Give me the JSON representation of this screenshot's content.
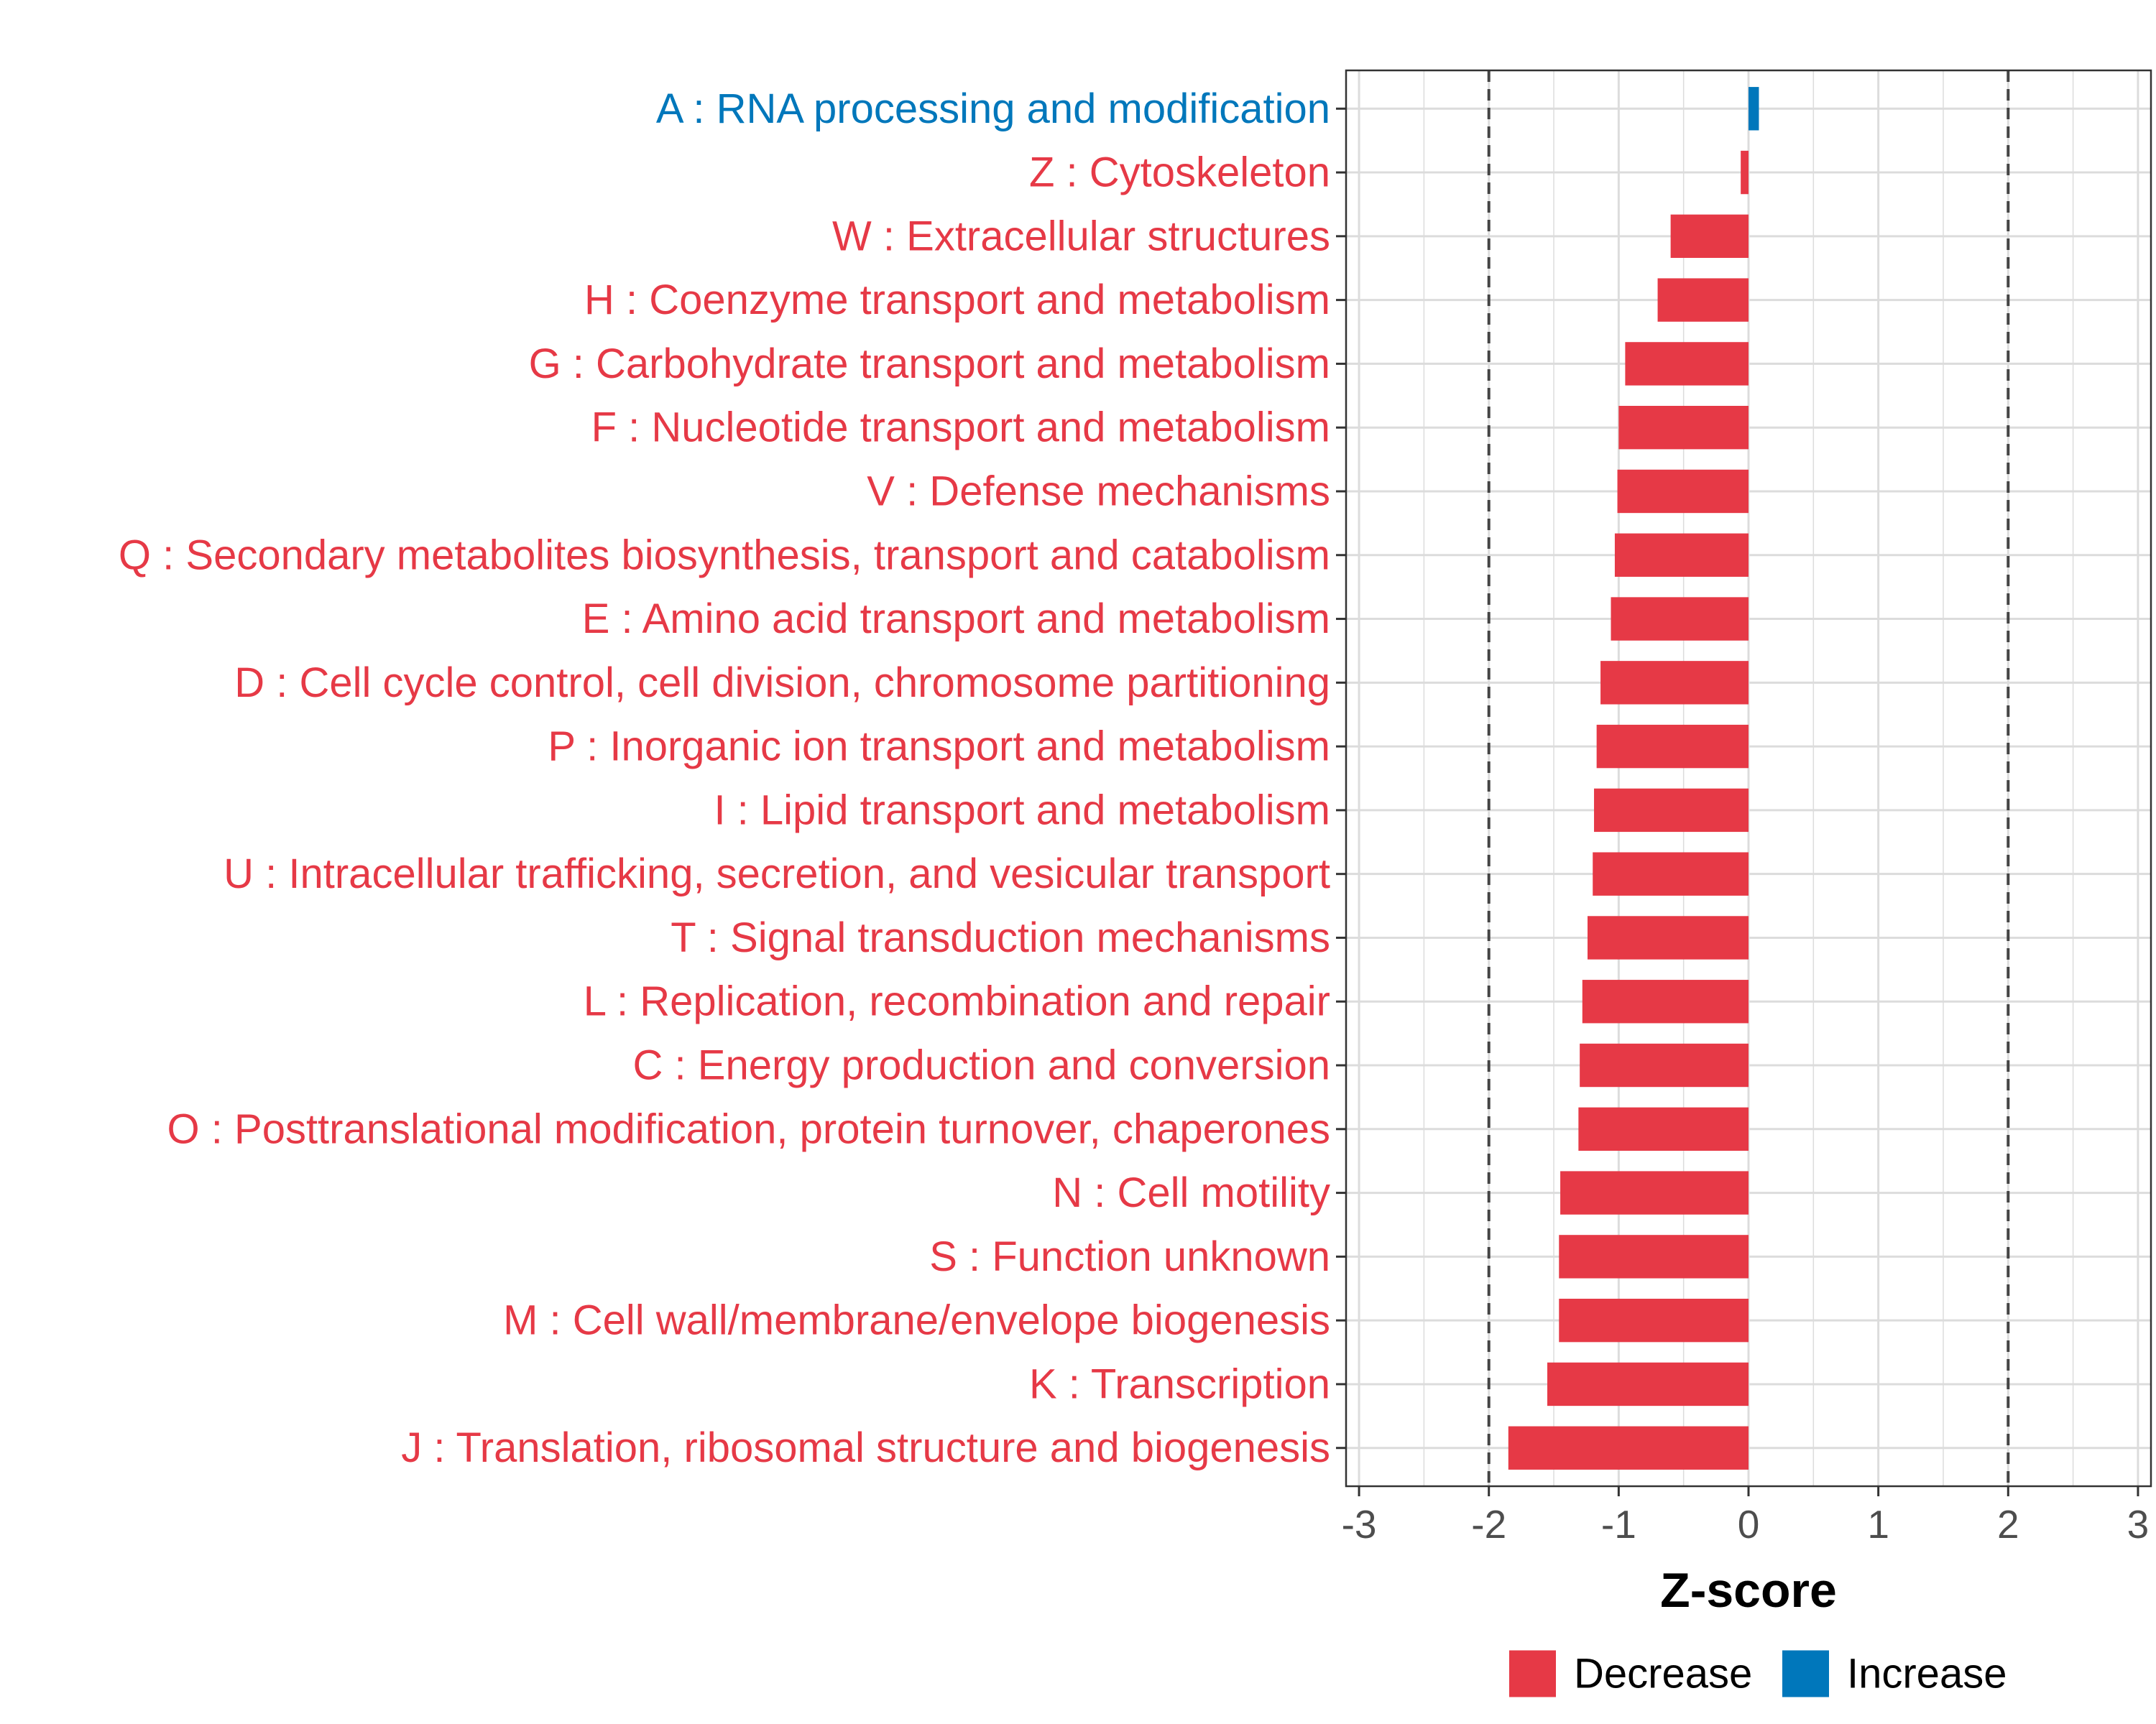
{
  "chart_data": {
    "type": "bar",
    "orientation": "horizontal",
    "xlabel": "Z-score",
    "ylabel": "",
    "xlim": [
      -3,
      3
    ],
    "xticks": [
      -3,
      -2,
      -1,
      0,
      1,
      2,
      3
    ],
    "xtick_labels": [
      "-3",
      "-2",
      "-1",
      "0",
      "1",
      "2",
      "3"
    ],
    "reference_lines": [
      -2,
      2
    ],
    "grid": true,
    "categories": [
      "A : RNA processing and modification",
      "Z : Cytoskeleton",
      "W : Extracellular structures",
      "H : Coenzyme transport and metabolism",
      "G : Carbohydrate transport and metabolism",
      "F : Nucleotide transport and metabolism",
      "V : Defense mechanisms",
      "Q : Secondary metabolites biosynthesis, transport and catabolism",
      "E : Amino acid transport and metabolism",
      "D : Cell cycle control, cell division, chromosome partitioning",
      "P : Inorganic ion transport and metabolism",
      "I : Lipid transport and metabolism",
      "U : Intracellular trafficking, secretion, and vesicular transport",
      "T : Signal transduction mechanisms",
      "L : Replication, recombination and repair",
      "C : Energy production and conversion",
      "O : Posttranslational modification, protein turnover, chaperones",
      "N : Cell motility",
      "S : Function unknown",
      "M : Cell wall/membrane/envelope biogenesis",
      "K : Transcription",
      "J : Translation, ribosomal structure and biogenesis"
    ],
    "values": [
      0.08,
      -0.06,
      -0.6,
      -0.7,
      -0.95,
      -1.0,
      -1.01,
      -1.03,
      -1.06,
      -1.14,
      -1.17,
      -1.19,
      -1.2,
      -1.24,
      -1.28,
      -1.3,
      -1.31,
      -1.45,
      -1.46,
      -1.46,
      -1.55,
      -1.85
    ],
    "groups": [
      "Increase",
      "Decrease",
      "Decrease",
      "Decrease",
      "Decrease",
      "Decrease",
      "Decrease",
      "Decrease",
      "Decrease",
      "Decrease",
      "Decrease",
      "Decrease",
      "Decrease",
      "Decrease",
      "Decrease",
      "Decrease",
      "Decrease",
      "Decrease",
      "Decrease",
      "Decrease",
      "Decrease",
      "Decrease"
    ],
    "legend": {
      "placement": "bottom",
      "entries": [
        {
          "name": "Decrease",
          "color": "#e63946"
        },
        {
          "name": "Increase",
          "color": "#0077bb"
        }
      ]
    }
  }
}
